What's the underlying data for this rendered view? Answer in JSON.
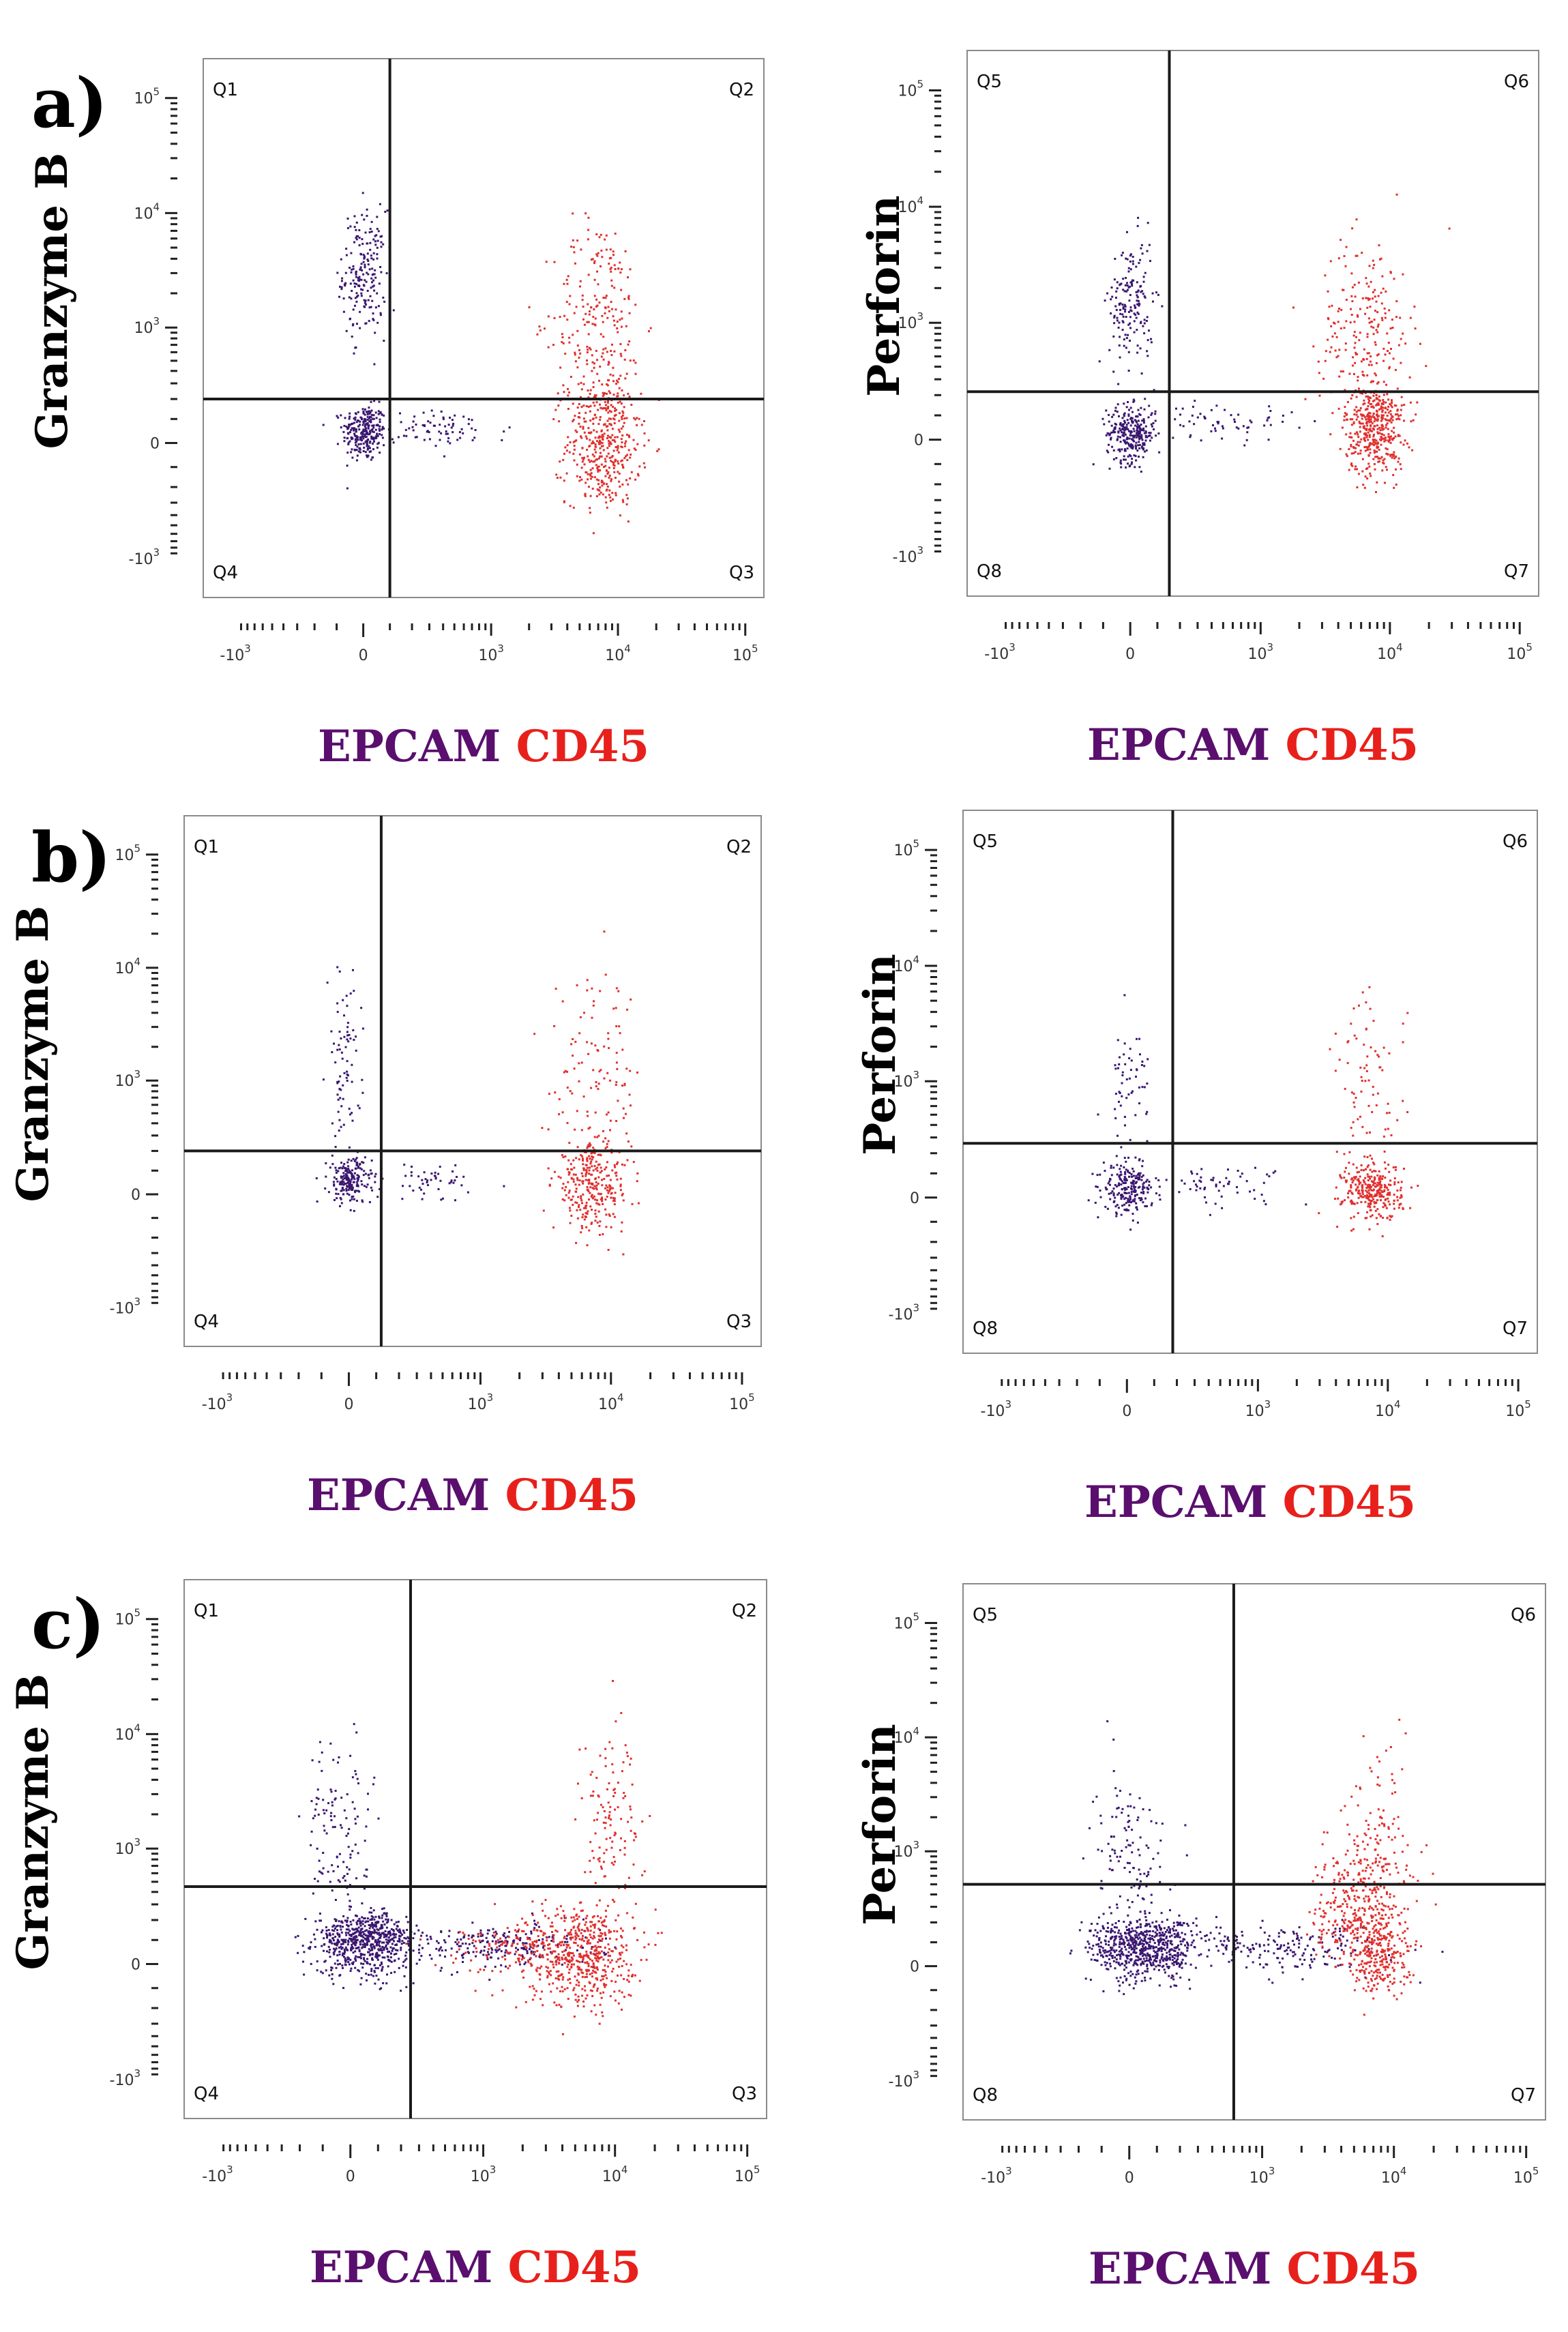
{
  "colors": {
    "epcam": "#5a0f6e",
    "cd45": "#e8201b",
    "epcam_dot": "#3a1670",
    "cd45_dot": "#e0302e"
  },
  "x_label": {
    "epcam": "EPCAM",
    "cd45": "CD45"
  },
  "chart_data": [
    {
      "type": "scatter",
      "panel": "a)",
      "ylabel": "Granzyme B",
      "quadrants": [
        "Q1",
        "Q2",
        "Q3",
        "Q4"
      ],
      "xticks": [
        "-10^3",
        "0",
        "10^3",
        "10^4",
        "10^5"
      ],
      "yticks": [
        "10^5",
        "10^4",
        "10^3",
        "0",
        "-10^3"
      ],
      "gate": {
        "x": 100,
        "y": 200
      },
      "series": [
        {
          "name": "EPCAM",
          "clusters": [
            {
              "x": 0,
              "y": 50,
              "sx": 40,
              "sy": 60,
              "n": 260
            },
            {
              "x": 0,
              "y": 3000,
              "sx": 40,
              "sy": 1.9,
              "n": 200
            },
            {
              "x": 400,
              "y": 60,
              "sx": 1.9,
              "sy": 40,
              "n": 70
            }
          ]
        },
        {
          "name": "CD45",
          "clusters": [
            {
              "x": 7500,
              "y": 0,
              "sx": 1.4,
              "sy": 150,
              "n": 420
            },
            {
              "x": 7000,
              "y": 1200,
              "sx": 1.5,
              "sy": 2.8,
              "n": 230
            }
          ]
        }
      ]
    },
    {
      "type": "scatter",
      "panel": "",
      "ylabel": "Perforin",
      "quadrants": [
        "Q5",
        "Q6",
        "Q7",
        "Q8"
      ],
      "xticks": [
        "-10^3",
        "0",
        "10^3",
        "10^4",
        "10^5"
      ],
      "yticks": [
        "10^5",
        "10^4",
        "10^3",
        "0",
        "-10^3"
      ],
      "gate": {
        "x": 150,
        "y": 220
      },
      "series": [
        {
          "name": "EPCAM",
          "clusters": [
            {
              "x": 0,
              "y": 30,
              "sx": 45,
              "sy": 60,
              "n": 280
            },
            {
              "x": 0,
              "y": 1500,
              "sx": 40,
              "sy": 1.9,
              "n": 170
            },
            {
              "x": 500,
              "y": 80,
              "sx": 1.9,
              "sy": 40,
              "n": 60
            }
          ]
        },
        {
          "name": "CD45",
          "clusters": [
            {
              "x": 7500,
              "y": 50,
              "sx": 1.3,
              "sy": 100,
              "n": 420
            },
            {
              "x": 6500,
              "y": 900,
              "sx": 1.5,
              "sy": 2.5,
              "n": 220
            }
          ]
        }
      ]
    },
    {
      "type": "scatter",
      "panel": "b)",
      "ylabel": "Granzyme B",
      "quadrants": [
        "Q1",
        "Q2",
        "Q3",
        "Q4"
      ],
      "xticks": [
        "-10^3",
        "0",
        "10^3",
        "10^4",
        "10^5"
      ],
      "yticks": [
        "10^5",
        "10^4",
        "10^3",
        "0",
        "-10^3"
      ],
      "gate": {
        "x": 120,
        "y": 200
      },
      "series": [
        {
          "name": "EPCAM",
          "clusters": [
            {
              "x": 0,
              "y": 60,
              "sx": 40,
              "sy": 50,
              "n": 200
            },
            {
              "x": -20,
              "y": 1500,
              "sx": 30,
              "sy": 2.5,
              "n": 80
            },
            {
              "x": 400,
              "y": 60,
              "sx": 1.8,
              "sy": 40,
              "n": 50
            }
          ]
        },
        {
          "name": "CD45",
          "clusters": [
            {
              "x": 7000,
              "y": 40,
              "sx": 1.4,
              "sy": 100,
              "n": 300
            },
            {
              "x": 7500,
              "y": 1000,
              "sx": 1.5,
              "sy": 2.8,
              "n": 110
            }
          ]
        }
      ]
    },
    {
      "type": "scatter",
      "panel": "",
      "ylabel": "Perforin",
      "quadrants": [
        "Q5",
        "Q6",
        "Q7",
        "Q8"
      ],
      "xticks": [
        "-10^3",
        "0",
        "10^3",
        "10^4",
        "10^5"
      ],
      "yticks": [
        "10^5",
        "10^4",
        "10^3",
        "0",
        "-10^3"
      ],
      "gate": {
        "x": 180,
        "y": 260
      },
      "series": [
        {
          "name": "EPCAM",
          "clusters": [
            {
              "x": 0,
              "y": 40,
              "sx": 45,
              "sy": 50,
              "n": 220
            },
            {
              "x": 0,
              "y": 900,
              "sx": 40,
              "sy": 2.0,
              "n": 60
            },
            {
              "x": 500,
              "y": 60,
              "sx": 1.8,
              "sy": 40,
              "n": 60
            }
          ]
        },
        {
          "name": "CD45",
          "clusters": [
            {
              "x": 7500,
              "y": 30,
              "sx": 1.3,
              "sy": 60,
              "n": 300
            },
            {
              "x": 7000,
              "y": 900,
              "sx": 1.4,
              "sy": 2.5,
              "n": 80
            }
          ]
        }
      ]
    },
    {
      "type": "scatter",
      "panel": "c)",
      "ylabel": "Granzyme B",
      "quadrants": [
        "Q1",
        "Q2",
        "Q3",
        "Q4"
      ],
      "xticks": [
        "-10^3",
        "0",
        "10^3",
        "10^4",
        "10^5"
      ],
      "yticks": [
        "10^5",
        "10^4",
        "10^3",
        "0",
        "-10^3"
      ],
      "gate": {
        "x": 250,
        "y": 450
      },
      "series": [
        {
          "name": "EPCAM",
          "clusters": [
            {
              "x": 50,
              "y": 100,
              "sx": 90,
              "sy": 70,
              "n": 650
            },
            {
              "x": -50,
              "y": 1500,
              "sx": 60,
              "sy": 2.5,
              "n": 120
            },
            {
              "x": 1200,
              "y": 80,
              "sx": 2.5,
              "sy": 50,
              "n": 250
            }
          ]
        },
        {
          "name": "CD45",
          "clusters": [
            {
              "x": 5500,
              "y": 50,
              "sx": 1.6,
              "sy": 120,
              "n": 500
            },
            {
              "x": 9000,
              "y": 2000,
              "sx": 1.3,
              "sy": 2.5,
              "n": 120
            },
            {
              "x": 2000,
              "y": 60,
              "sx": 2.2,
              "sy": 60,
              "n": 150
            }
          ]
        }
      ]
    },
    {
      "type": "scatter",
      "panel": "",
      "ylabel": "Perforin",
      "quadrants": [
        "Q5",
        "Q6",
        "Q7",
        "Q8"
      ],
      "xticks": [
        "-10^3",
        "0",
        "10^3",
        "10^4",
        "10^5"
      ],
      "yticks": [
        "10^5",
        "10^4",
        "10^3",
        "0",
        "-10^3"
      ],
      "gate": {
        "x": 600,
        "y": 500
      },
      "series": [
        {
          "name": "EPCAM",
          "clusters": [
            {
              "x": 50,
              "y": 80,
              "sx": 100,
              "sy": 70,
              "n": 650
            },
            {
              "x": 0,
              "y": 1000,
              "sx": 70,
              "sy": 2.2,
              "n": 120
            },
            {
              "x": 1300,
              "y": 80,
              "sx": 2.5,
              "sy": 50,
              "n": 220
            }
          ]
        },
        {
          "name": "CD45",
          "clusters": [
            {
              "x": 5500,
              "y": 300,
              "sx": 1.5,
              "sy": 2.0,
              "n": 350
            },
            {
              "x": 7500,
              "y": 40,
              "sx": 1.3,
              "sy": 80,
              "n": 250
            },
            {
              "x": 8000,
              "y": 1500,
              "sx": 1.3,
              "sy": 2.5,
              "n": 90
            }
          ]
        }
      ]
    }
  ]
}
